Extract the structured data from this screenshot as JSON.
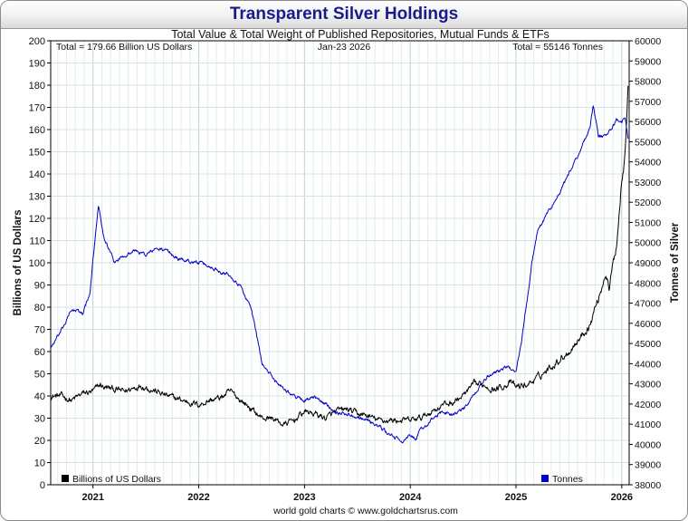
{
  "chart_data": {
    "type": "line",
    "title": "Transparent Silver Holdings",
    "subtitle": "Total Value & Total Weight of Published Repositories, Mutual Funds & ETFs",
    "annotations": {
      "left": "Total = 179.66 Billion US Dollars",
      "center": "Jan-23  2026",
      "right": "Total = 55146 Tonnes"
    },
    "ylabel_left": "Billions of US Dollars",
    "ylabel_right": "Tonnes of Silver",
    "ylim_left": [
      0,
      200
    ],
    "ylim_right": [
      38000,
      60000
    ],
    "yticks_left": [
      "0",
      "10",
      "20",
      "30",
      "40",
      "50",
      "60",
      "70",
      "80",
      "90",
      "100",
      "110",
      "120",
      "130",
      "140",
      "150",
      "160",
      "170",
      "180",
      "190",
      "200"
    ],
    "yticks_right": [
      "38000",
      "39000",
      "40000",
      "41000",
      "42000",
      "43000",
      "44000",
      "45000",
      "46000",
      "47000",
      "48000",
      "49000",
      "50000",
      "51000",
      "52000",
      "53000",
      "54000",
      "55000",
      "56000",
      "57000",
      "58000",
      "59000",
      "60000"
    ],
    "xticks": [
      "2021",
      "2022",
      "2023",
      "2024",
      "2025",
      "2026"
    ],
    "xlim": [
      2020.6,
      2026.07
    ],
    "legend": [
      "Billions of US Dollars",
      "Tonnes"
    ],
    "grid": true,
    "footer": "world gold charts © www.goldchartsrus.com",
    "series": [
      {
        "name": "Billions of US Dollars",
        "color": "#000000",
        "axis": "left",
        "points": [
          [
            2020.6,
            40
          ],
          [
            2020.7,
            40
          ],
          [
            2020.8,
            38
          ],
          [
            2020.9,
            41
          ],
          [
            2021.0,
            42
          ],
          [
            2021.07,
            45
          ],
          [
            2021.1,
            44
          ],
          [
            2021.2,
            43
          ],
          [
            2021.3,
            42
          ],
          [
            2021.4,
            44
          ],
          [
            2021.45,
            45
          ],
          [
            2021.55,
            43
          ],
          [
            2021.7,
            40
          ],
          [
            2021.85,
            38
          ],
          [
            2022.0,
            36
          ],
          [
            2022.1,
            38
          ],
          [
            2022.2,
            39
          ],
          [
            2022.3,
            42
          ],
          [
            2022.4,
            38
          ],
          [
            2022.5,
            34
          ],
          [
            2022.6,
            30
          ],
          [
            2022.7,
            30
          ],
          [
            2022.8,
            27
          ],
          [
            2022.9,
            29
          ],
          [
            2023.0,
            33
          ],
          [
            2023.1,
            32
          ],
          [
            2023.2,
            30
          ],
          [
            2023.3,
            33
          ],
          [
            2023.4,
            34
          ],
          [
            2023.5,
            32
          ],
          [
            2023.6,
            31
          ],
          [
            2023.7,
            29
          ],
          [
            2023.8,
            29
          ],
          [
            2023.9,
            29
          ],
          [
            2024.0,
            29
          ],
          [
            2024.1,
            30
          ],
          [
            2024.2,
            33
          ],
          [
            2024.3,
            36
          ],
          [
            2024.4,
            37
          ],
          [
            2024.5,
            40
          ],
          [
            2024.6,
            45
          ],
          [
            2024.7,
            45
          ],
          [
            2024.8,
            43
          ],
          [
            2024.85,
            44
          ],
          [
            2024.95,
            46
          ],
          [
            2025.0,
            44
          ],
          [
            2025.1,
            45
          ],
          [
            2025.2,
            48
          ],
          [
            2025.3,
            52
          ],
          [
            2025.4,
            56
          ],
          [
            2025.5,
            60
          ],
          [
            2025.6,
            66
          ],
          [
            2025.7,
            72
          ],
          [
            2025.75,
            80
          ],
          [
            2025.8,
            87
          ],
          [
            2025.85,
            96
          ],
          [
            2025.88,
            88
          ],
          [
            2025.92,
            100
          ],
          [
            2025.95,
            108
          ],
          [
            2025.98,
            125
          ],
          [
            2026.0,
            138
          ],
          [
            2026.02,
            145
          ],
          [
            2026.04,
            160
          ],
          [
            2026.05,
            172
          ],
          [
            2026.06,
            179.66
          ]
        ]
      },
      {
        "name": "Tonnes",
        "color": "#0000cc",
        "axis": "right",
        "points": [
          [
            2020.6,
            44800
          ],
          [
            2020.7,
            45600
          ],
          [
            2020.8,
            46700
          ],
          [
            2020.9,
            46500
          ],
          [
            2020.97,
            47400
          ],
          [
            2021.05,
            51900
          ],
          [
            2021.1,
            50300
          ],
          [
            2021.2,
            49000
          ],
          [
            2021.3,
            49400
          ],
          [
            2021.4,
            49600
          ],
          [
            2021.5,
            49400
          ],
          [
            2021.6,
            49700
          ],
          [
            2021.7,
            49600
          ],
          [
            2021.8,
            49200
          ],
          [
            2021.9,
            49100
          ],
          [
            2022.0,
            49000
          ],
          [
            2022.1,
            48800
          ],
          [
            2022.2,
            48600
          ],
          [
            2022.3,
            48400
          ],
          [
            2022.4,
            47800
          ],
          [
            2022.5,
            46700
          ],
          [
            2022.55,
            45300
          ],
          [
            2022.6,
            44000
          ],
          [
            2022.7,
            43300
          ],
          [
            2022.8,
            42800
          ],
          [
            2022.9,
            42400
          ],
          [
            2023.0,
            42200
          ],
          [
            2023.1,
            42300
          ],
          [
            2023.2,
            42000
          ],
          [
            2023.3,
            41600
          ],
          [
            2023.4,
            41500
          ],
          [
            2023.5,
            41400
          ],
          [
            2023.6,
            41200
          ],
          [
            2023.7,
            40900
          ],
          [
            2023.8,
            40500
          ],
          [
            2023.9,
            40200
          ],
          [
            2023.95,
            40200
          ],
          [
            2024.0,
            40400
          ],
          [
            2024.05,
            40300
          ],
          [
            2024.1,
            40700
          ],
          [
            2024.2,
            41200
          ],
          [
            2024.3,
            41600
          ],
          [
            2024.4,
            41500
          ],
          [
            2024.5,
            41700
          ],
          [
            2024.6,
            42400
          ],
          [
            2024.7,
            43200
          ],
          [
            2024.8,
            43600
          ],
          [
            2024.9,
            43800
          ],
          [
            2025.0,
            43700
          ],
          [
            2025.05,
            45000
          ],
          [
            2025.1,
            47000
          ],
          [
            2025.15,
            49000
          ],
          [
            2025.2,
            50500
          ],
          [
            2025.25,
            51000
          ],
          [
            2025.3,
            51500
          ],
          [
            2025.4,
            52300
          ],
          [
            2025.5,
            53400
          ],
          [
            2025.6,
            54500
          ],
          [
            2025.7,
            55700
          ],
          [
            2025.73,
            56800
          ],
          [
            2025.78,
            55200
          ],
          [
            2025.85,
            55300
          ],
          [
            2025.9,
            55600
          ],
          [
            2025.95,
            56100
          ],
          [
            2026.0,
            55900
          ],
          [
            2026.03,
            56300
          ],
          [
            2026.06,
            55146
          ]
        ]
      }
    ]
  }
}
